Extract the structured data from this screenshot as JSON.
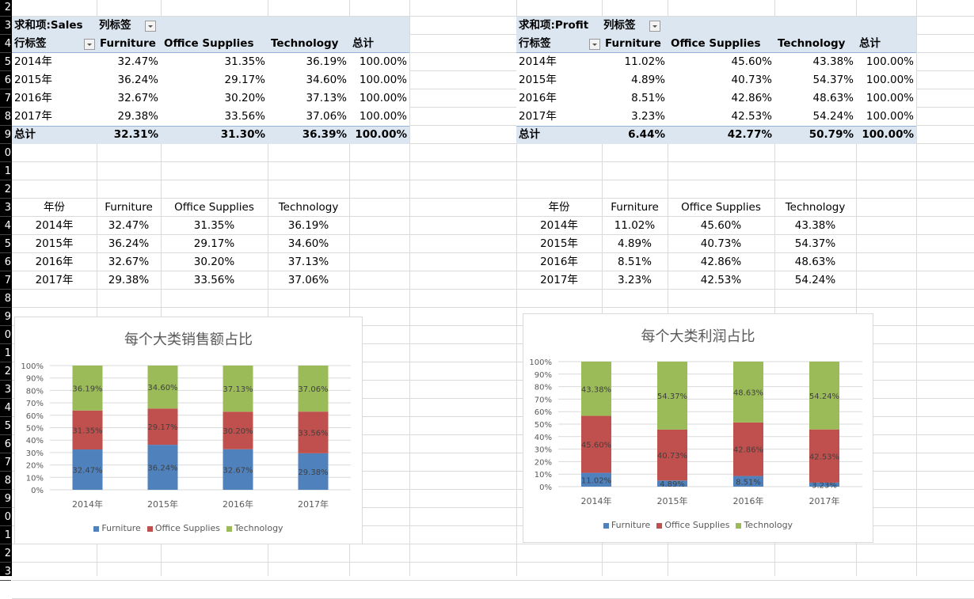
{
  "row_numbers": [
    "2",
    "3",
    "4",
    "5",
    "6",
    "7",
    "8",
    "9",
    "0",
    "1",
    "2",
    "3",
    "4",
    "5",
    "6",
    "7",
    "8",
    "9",
    "0",
    "1",
    "2",
    "3",
    "4",
    "5",
    "6",
    "7",
    "8",
    "9",
    "0",
    "1",
    "2",
    "3"
  ],
  "colors": {
    "furniture": "#4f81bd",
    "office": "#c0504d",
    "technology": "#9bbb59",
    "pivot_band": "#dce6f1"
  },
  "sales_pivot": {
    "value_field": "求和项:Sales",
    "col_label": "列标签",
    "row_label": "行标签",
    "headers": [
      "Furniture",
      "Office Supplies",
      "Technology",
      "总计"
    ],
    "rows": [
      {
        "year": "2014年",
        "values": [
          "32.47%",
          "31.35%",
          "36.19%",
          "100.00%"
        ]
      },
      {
        "year": "2015年",
        "values": [
          "36.24%",
          "29.17%",
          "34.60%",
          "100.00%"
        ]
      },
      {
        "year": "2016年",
        "values": [
          "32.67%",
          "30.20%",
          "37.13%",
          "100.00%"
        ]
      },
      {
        "year": "2017年",
        "values": [
          "29.38%",
          "33.56%",
          "37.06%",
          "100.00%"
        ]
      }
    ],
    "total": {
      "label": "总计",
      "values": [
        "32.31%",
        "31.30%",
        "36.39%",
        "100.00%"
      ]
    }
  },
  "profit_pivot": {
    "value_field": "求和项:Profit",
    "col_label": "列标签",
    "row_label": "行标签",
    "headers": [
      "Furniture",
      "Office Supplies",
      "Technology",
      "总计"
    ],
    "rows": [
      {
        "year": "2014年",
        "values": [
          "11.02%",
          "45.60%",
          "43.38%",
          "100.00%"
        ]
      },
      {
        "year": "2015年",
        "values": [
          "4.89%",
          "40.73%",
          "54.37%",
          "100.00%"
        ]
      },
      {
        "year": "2016年",
        "values": [
          "8.51%",
          "42.86%",
          "48.63%",
          "100.00%"
        ]
      },
      {
        "year": "2017年",
        "values": [
          "3.23%",
          "42.53%",
          "54.24%",
          "100.00%"
        ]
      }
    ],
    "total": {
      "label": "总计",
      "values": [
        "6.44%",
        "42.77%",
        "50.79%",
        "100.00%"
      ]
    }
  },
  "sales_table": {
    "headers": [
      "年份",
      "Furniture",
      "Office Supplies",
      "Technology"
    ],
    "rows": [
      [
        "2014年",
        "32.47%",
        "31.35%",
        "36.19%"
      ],
      [
        "2015年",
        "36.24%",
        "29.17%",
        "34.60%"
      ],
      [
        "2016年",
        "32.67%",
        "30.20%",
        "37.13%"
      ],
      [
        "2017年",
        "29.38%",
        "33.56%",
        "37.06%"
      ]
    ]
  },
  "profit_table": {
    "headers": [
      "年份",
      "Furniture",
      "Office Supplies",
      "Technology"
    ],
    "rows": [
      [
        "2014年",
        "11.02%",
        "45.60%",
        "43.38%"
      ],
      [
        "2015年",
        "4.89%",
        "40.73%",
        "54.37%"
      ],
      [
        "2016年",
        "8.51%",
        "42.86%",
        "48.63%"
      ],
      [
        "2017年",
        "3.23%",
        "42.53%",
        "54.24%"
      ]
    ]
  },
  "chart_data": [
    {
      "type": "bar",
      "stacked": "percent",
      "title": "每个大类销售额占比",
      "categories": [
        "2014年",
        "2015年",
        "2016年",
        "2017年"
      ],
      "series": [
        {
          "name": "Furniture",
          "values": [
            32.47,
            36.24,
            32.67,
            29.38
          ],
          "labels": [
            "32.47%",
            "36.24%",
            "32.67%",
            "29.38%"
          ]
        },
        {
          "name": "Office Supplies",
          "values": [
            31.35,
            29.17,
            30.2,
            33.56
          ],
          "labels": [
            "31.35%",
            "29.17%",
            "30.20%",
            "33.56%"
          ]
        },
        {
          "name": "Technology",
          "values": [
            36.19,
            34.6,
            37.13,
            37.06
          ],
          "labels": [
            "36.19%",
            "34.60%",
            "37.13%",
            "37.06%"
          ]
        }
      ],
      "yticks": [
        "0%",
        "10%",
        "20%",
        "30%",
        "40%",
        "50%",
        "60%",
        "70%",
        "80%",
        "90%",
        "100%"
      ],
      "ylim": [
        0,
        100
      ],
      "grid": true,
      "legend": "bottom"
    },
    {
      "type": "bar",
      "stacked": "percent",
      "title": "每个大类利润占比",
      "categories": [
        "2014年",
        "2015年",
        "2016年",
        "2017年"
      ],
      "series": [
        {
          "name": "Furniture",
          "values": [
            11.02,
            4.89,
            8.51,
            3.23
          ],
          "labels": [
            "11.02%",
            "4.89%",
            "8.51%",
            "3.23%"
          ]
        },
        {
          "name": "Office Supplies",
          "values": [
            45.6,
            40.73,
            42.86,
            42.53
          ],
          "labels": [
            "45.60%",
            "40.73%",
            "42.86%",
            "42.53%"
          ]
        },
        {
          "name": "Technology",
          "values": [
            43.38,
            54.37,
            48.63,
            54.24
          ],
          "labels": [
            "43.38%",
            "54.37%",
            "48.63%",
            "54.24%"
          ]
        }
      ],
      "yticks": [
        "0%",
        "10%",
        "20%",
        "30%",
        "40%",
        "50%",
        "60%",
        "70%",
        "80%",
        "90%",
        "100%"
      ],
      "ylim": [
        0,
        100
      ],
      "grid": true,
      "legend": "bottom"
    }
  ]
}
